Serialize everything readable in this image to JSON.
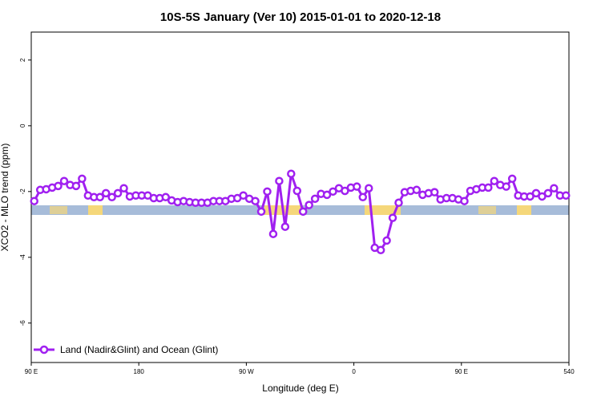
{
  "chart_data": {
    "type": "line",
    "title": "10S-5S January (Ver 10)   2015-01-01 to 2020-12-18",
    "x_label": "Longitude (deg E)",
    "y_label": "XCO2 - MLO trend (ppm)",
    "xlim": [
      90,
      540
    ],
    "xticks": [
      {
        "value": 90,
        "label": "90 E"
      },
      180,
      {
        "value": 270,
        "label": "90 W"
      },
      {
        "value": 360,
        "label": "0"
      },
      {
        "value": 450,
        "label": "90 E"
      },
      540
    ],
    "ylim": [
      -7.2,
      2.85
    ],
    "yticks": [
      2,
      0,
      -2,
      -4,
      -6
    ],
    "legend": "bottom-left",
    "x": [
      92.5,
      97.5,
      102.5,
      107.5,
      112.5,
      117.5,
      122.5,
      127.5,
      132.5,
      137.5,
      142.5,
      147.5,
      152.5,
      157.5,
      162.5,
      167.5,
      172.5,
      177.5,
      182.5,
      187.5,
      192.5,
      197.5,
      202.5,
      207.5,
      212.5,
      217.5,
      222.5,
      227.5,
      232.5,
      237.5,
      242.5,
      247.5,
      252.5,
      257.5,
      262.5,
      267.5,
      272.5,
      277.5,
      282.5,
      287.5,
      292.5,
      297.5,
      302.5,
      307.5,
      312.5,
      317.5,
      322.5,
      327.5,
      332.5,
      337.5,
      342.5,
      347.5,
      352.5,
      357.5,
      362.5,
      367.5,
      372.5,
      377.5,
      382.5,
      387.5,
      392.5,
      397.5,
      402.5,
      407.5,
      412.5,
      417.5,
      422.5,
      427.5,
      432.5,
      437.5,
      442.5,
      447.5,
      452.5,
      457.5,
      462.5,
      467.5,
      472.5,
      477.5,
      482.5,
      487.5,
      492.5,
      497.5,
      502.5,
      507.5,
      512.5,
      517.5,
      522.5,
      527.5,
      532.5,
      537.5
    ],
    "series": [
      {
        "name": "Land (Nadir&Glint) and Ocean (Glint)",
        "color": "#a020f0",
        "values": [
          -2.29,
          -1.95,
          -1.93,
          -1.88,
          -1.83,
          -1.68,
          -1.8,
          -1.83,
          -1.61,
          -2.12,
          -2.17,
          -2.17,
          -2.05,
          -2.17,
          -2.05,
          -1.9,
          -2.15,
          -2.12,
          -2.12,
          -2.12,
          -2.2,
          -2.2,
          -2.17,
          -2.27,
          -2.32,
          -2.29,
          -2.32,
          -2.34,
          -2.34,
          -2.34,
          -2.29,
          -2.29,
          -2.29,
          -2.22,
          -2.2,
          -2.12,
          -2.22,
          -2.29,
          -2.61,
          -2.0,
          -3.29,
          -1.68,
          -3.07,
          -1.46,
          -1.98,
          -2.61,
          -2.41,
          -2.22,
          -2.07,
          -2.1,
          -2.0,
          -1.9,
          -1.98,
          -1.88,
          -1.85,
          -2.17,
          -1.9,
          -3.71,
          -3.78,
          -3.49,
          -2.8,
          -2.34,
          -2.02,
          -1.98,
          -1.95,
          -2.1,
          -2.05,
          -2.02,
          -2.24,
          -2.2,
          -2.2,
          -2.24,
          -2.29,
          -1.98,
          -1.93,
          -1.88,
          -1.88,
          -1.68,
          -1.8,
          -1.85,
          -1.61,
          -2.12,
          -2.15,
          -2.15,
          -2.05,
          -2.15,
          -2.05,
          -1.9,
          -2.12,
          -2.12
        ]
      }
    ]
  }
}
